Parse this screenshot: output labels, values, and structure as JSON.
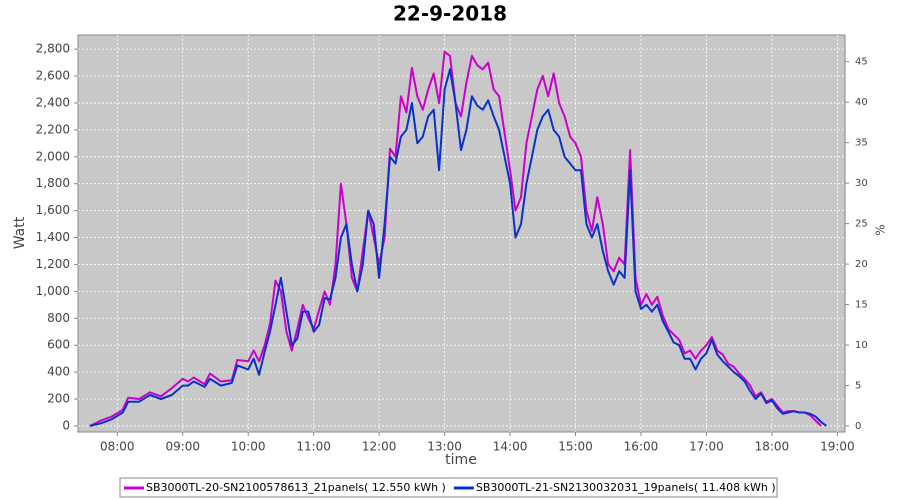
{
  "chart_data": {
    "type": "line",
    "title": "22-9-2018",
    "xlabel": "time",
    "ylabel": "Watt",
    "y2label": "%",
    "x": [
      "07:35",
      "07:45",
      "07:55",
      "08:05",
      "08:10",
      "08:20",
      "08:30",
      "08:40",
      "08:50",
      "09:00",
      "09:05",
      "09:10",
      "09:20",
      "09:25",
      "09:35",
      "09:45",
      "09:50",
      "10:00",
      "10:05",
      "10:10",
      "10:15",
      "10:20",
      "10:25",
      "10:30",
      "10:35",
      "10:40",
      "10:45",
      "10:50",
      "10:55",
      "11:00",
      "11:05",
      "11:10",
      "11:15",
      "11:20",
      "11:25",
      "11:30",
      "11:35",
      "11:40",
      "11:45",
      "11:50",
      "11:55",
      "12:00",
      "12:05",
      "12:10",
      "12:15",
      "12:20",
      "12:25",
      "12:30",
      "12:35",
      "12:40",
      "12:45",
      "12:50",
      "12:55",
      "13:00",
      "13:05",
      "13:10",
      "13:15",
      "13:20",
      "13:25",
      "13:30",
      "13:35",
      "13:40",
      "13:45",
      "13:50",
      "14:00",
      "14:05",
      "14:10",
      "14:15",
      "14:20",
      "14:25",
      "14:30",
      "14:35",
      "14:40",
      "14:45",
      "14:50",
      "14:55",
      "15:00",
      "15:05",
      "15:10",
      "15:15",
      "15:20",
      "15:25",
      "15:30",
      "15:35",
      "15:40",
      "15:45",
      "15:50",
      "15:55",
      "16:00",
      "16:05",
      "16:10",
      "16:15",
      "16:20",
      "16:25",
      "16:30",
      "16:35",
      "16:40",
      "16:45",
      "16:50",
      "16:55",
      "17:00",
      "17:05",
      "17:10",
      "17:15",
      "17:20",
      "17:25",
      "17:30",
      "17:35",
      "17:40",
      "17:45",
      "17:50",
      "17:55",
      "18:00",
      "18:05",
      "18:10",
      "18:15",
      "18:20",
      "18:25",
      "18:30",
      "18:35",
      "18:40",
      "18:45",
      "18:50"
    ],
    "series": [
      {
        "name": "SB3000TL-20-SN2100578613_21panels( 12.550 kWh )",
        "color": "#cc00cc",
        "values": [
          0,
          40,
          70,
          120,
          210,
          200,
          250,
          220,
          280,
          350,
          330,
          360,
          310,
          390,
          330,
          340,
          490,
          480,
          560,
          480,
          600,
          760,
          1080,
          1000,
          700,
          560,
          720,
          900,
          800,
          720,
          860,
          1000,
          900,
          1200,
          1800,
          1500,
          1100,
          1000,
          1300,
          1600,
          1400,
          1200,
          1400,
          2060,
          2000,
          2450,
          2330,
          2660,
          2450,
          2350,
          2500,
          2620,
          2400,
          2780,
          2750,
          2400,
          2300,
          2550,
          2750,
          2680,
          2650,
          2700,
          2500,
          2450,
          1900,
          1600,
          1700,
          2100,
          2300,
          2500,
          2600,
          2450,
          2620,
          2400,
          2300,
          2150,
          2100,
          2000,
          1600,
          1450,
          1700,
          1500,
          1200,
          1150,
          1250,
          1200,
          2050,
          1100,
          900,
          980,
          900,
          960,
          820,
          720,
          680,
          640,
          540,
          560,
          500,
          560,
          600,
          660,
          560,
          530,
          460,
          440,
          390,
          350,
          300,
          220,
          250,
          180,
          200,
          150,
          100,
          110,
          110,
          100,
          100,
          80,
          40,
          0,
          null
        ]
      },
      {
        "name": "SB3000TL-21-SN2130032031_19panels( 11.408 kWh )",
        "color": "#0a32c8",
        "values": [
          0,
          20,
          50,
          100,
          180,
          180,
          230,
          200,
          230,
          300,
          300,
          330,
          290,
          350,
          300,
          320,
          450,
          420,
          500,
          380,
          550,
          700,
          900,
          1100,
          850,
          600,
          650,
          850,
          850,
          700,
          750,
          950,
          940,
          1100,
          1400,
          1500,
          1200,
          1000,
          1200,
          1600,
          1500,
          1100,
          1500,
          2000,
          1950,
          2150,
          2200,
          2400,
          2100,
          2150,
          2300,
          2350,
          1900,
          2500,
          2650,
          2400,
          2050,
          2200,
          2450,
          2380,
          2350,
          2420,
          2300,
          2200,
          1800,
          1400,
          1500,
          1800,
          2000,
          2200,
          2300,
          2350,
          2200,
          2150,
          2000,
          1950,
          1900,
          1900,
          1500,
          1400,
          1500,
          1300,
          1150,
          1050,
          1150,
          1100,
          1900,
          1000,
          870,
          900,
          850,
          900,
          780,
          700,
          620,
          600,
          500,
          500,
          420,
          500,
          540,
          640,
          530,
          480,
          440,
          400,
          370,
          330,
          260,
          200,
          240,
          170,
          190,
          130,
          90,
          100,
          110,
          100,
          100,
          90,
          70,
          30,
          0
        ]
      }
    ],
    "xlim": [
      "07:24",
      "19:07"
    ],
    "xticks": [
      "08:00",
      "09:00",
      "10:00",
      "11:00",
      "12:00",
      "13:00",
      "14:00",
      "15:00",
      "16:00",
      "17:00",
      "18:00",
      "19:00"
    ],
    "ylim": [
      -45,
      2905
    ],
    "yticks": [
      0,
      200,
      400,
      600,
      800,
      {
        "value": 1000,
        "label": "1,000"
      },
      {
        "value": 1200,
        "label": "1,200"
      },
      {
        "value": 1400,
        "label": "1,400"
      },
      {
        "value": 1600,
        "label": "1,600"
      },
      {
        "value": 1800,
        "label": "1,800"
      },
      {
        "value": 2000,
        "label": "2,000"
      },
      {
        "value": 2200,
        "label": "2,200"
      },
      {
        "value": 2400,
        "label": "2,400"
      },
      {
        "value": 2600,
        "label": "2,600"
      },
      {
        "value": 2800,
        "label": "2,800"
      }
    ],
    "y2lim": [
      -0.74,
      48.3
    ],
    "y2ticks": [
      0,
      5,
      10,
      15,
      20,
      25,
      30,
      35,
      40,
      45
    ],
    "grid": true,
    "legend": "bottom"
  }
}
